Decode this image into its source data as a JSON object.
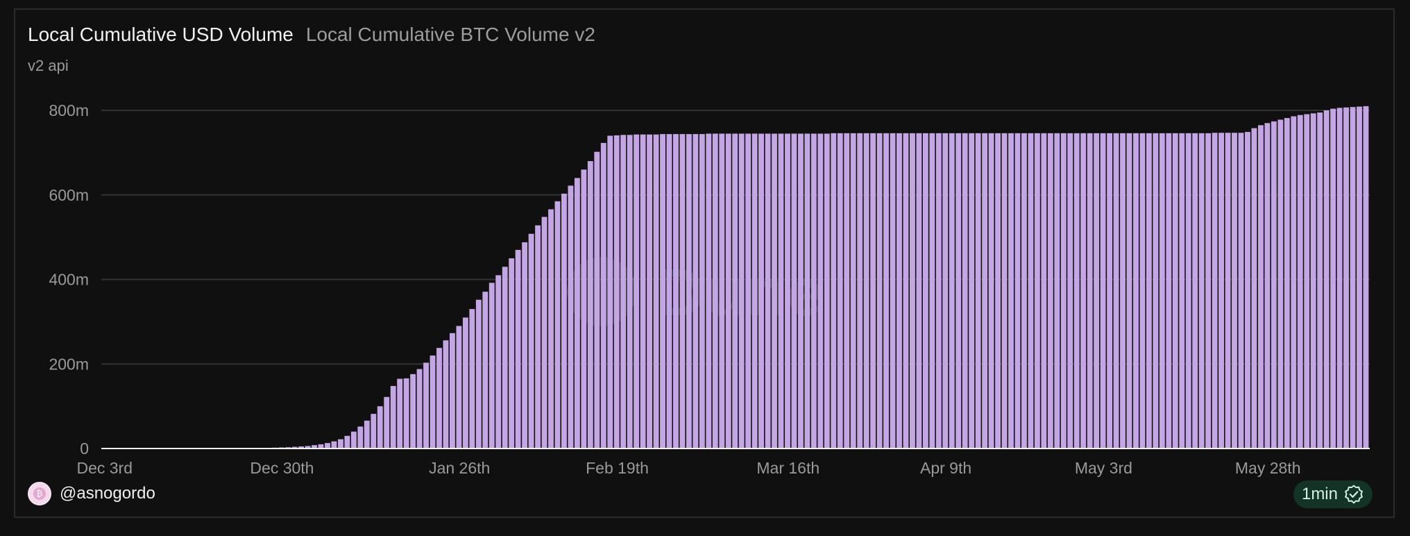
{
  "header": {
    "tabs": [
      {
        "label": "Local Cumulative USD Volume",
        "active": true
      },
      {
        "label": "Local Cumulative BTC Volume v2",
        "active": false
      }
    ],
    "subtitle": "v2 api"
  },
  "footer": {
    "author": "@asnogordo",
    "avatar_glyph": "₿",
    "refresh_badge": "1min",
    "badge_icon": "verified-check-icon"
  },
  "watermark": "Dune",
  "colors": {
    "background": "#101010",
    "bar": "#c3a6e3",
    "gridline": "#333333",
    "axis_text": "#9a9a9a",
    "badge_bg": "#123326"
  },
  "chart_data": {
    "type": "bar",
    "title": "Local Cumulative USD Volume",
    "ylim": [
      0,
      800000000
    ],
    "yticks": [
      {
        "value": 0,
        "label": "0"
      },
      {
        "value": 200000000,
        "label": "200m"
      },
      {
        "value": 400000000,
        "label": "400m"
      },
      {
        "value": 600000000,
        "label": "600m"
      },
      {
        "value": 800000000,
        "label": "800m"
      }
    ],
    "xtick_labels": [
      {
        "index": 0,
        "label": "Dec 3rd"
      },
      {
        "index": 27,
        "label": "Dec 30th"
      },
      {
        "index": 54,
        "label": "Jan 26th"
      },
      {
        "index": 78,
        "label": "Feb 19th"
      },
      {
        "index": 104,
        "label": "Mar 16th"
      },
      {
        "index": 128,
        "label": "Apr 9th"
      },
      {
        "index": 152,
        "label": "May 3rd"
      },
      {
        "index": 177,
        "label": "May 28th"
      }
    ],
    "grid": true,
    "series": [
      {
        "values_m": [
          0,
          0,
          0,
          0,
          0,
          0,
          0,
          0,
          0,
          0,
          0,
          0,
          0,
          0,
          0,
          0,
          0,
          0.2,
          0.3,
          0.4,
          0.5,
          0.6,
          0.8,
          1,
          1.2,
          1.5,
          2,
          2.5,
          3,
          4,
          5,
          6,
          8,
          10,
          13,
          17,
          22,
          30,
          40,
          52,
          66,
          82,
          100,
          122,
          148,
          165,
          166,
          176,
          188,
          203,
          220,
          238,
          256,
          273,
          290,
          310,
          330,
          352,
          371,
          392,
          410,
          430,
          450,
          470,
          488,
          508,
          528,
          548,
          566,
          585,
          603,
          622,
          640,
          660,
          680,
          702,
          723,
          740,
          741,
          742,
          742,
          743,
          743,
          743,
          743,
          744,
          744,
          744,
          744,
          744,
          744,
          744,
          745,
          745,
          745,
          745,
          745,
          745,
          745,
          745,
          745,
          745,
          745,
          745,
          745,
          745,
          745,
          745,
          745,
          745,
          745,
          746,
          746,
          746,
          746,
          746,
          746,
          746,
          746,
          746,
          746,
          746,
          746,
          746,
          746,
          746,
          746,
          746,
          746,
          746,
          746,
          746,
          746,
          746,
          746,
          746,
          746,
          746,
          746,
          746,
          746,
          746,
          746,
          746,
          746,
          746,
          746,
          746,
          746,
          746,
          746,
          746,
          746,
          746,
          746,
          746,
          746,
          746,
          746,
          746,
          746,
          746,
          746,
          746,
          746,
          746,
          746,
          746,
          746,
          747,
          747,
          747,
          747,
          747,
          749,
          758,
          765,
          770,
          774,
          778,
          782,
          786,
          789,
          791,
          793,
          795,
          800,
          804,
          806,
          807,
          808,
          809,
          810
        ]
      }
    ]
  }
}
